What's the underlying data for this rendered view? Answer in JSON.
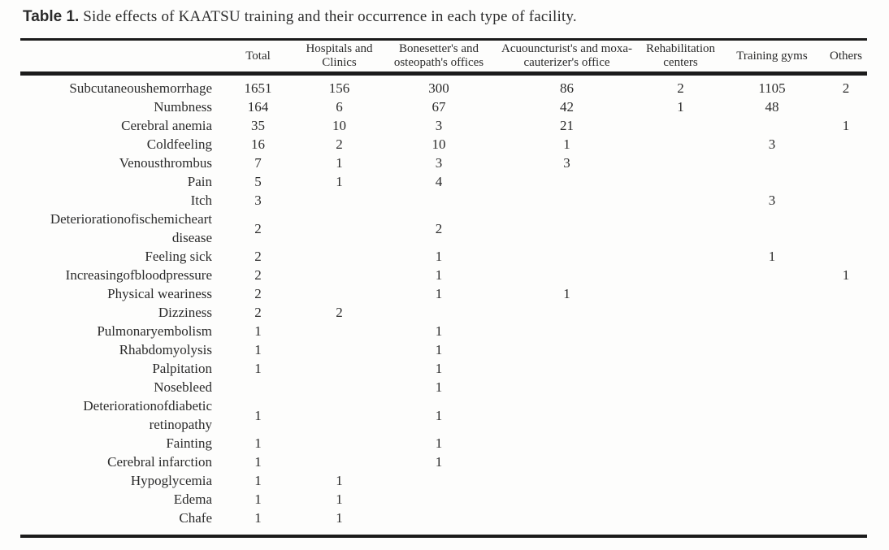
{
  "title": {
    "label": "Table 1.",
    "text": " Side effects of KAATSU training and their occurrence in each type of facility."
  },
  "colors": {
    "text": "#2b2b2b",
    "rule": "#1b1b1b",
    "background": "#fdfdfc"
  },
  "table": {
    "columns": [
      {
        "key": "label",
        "label": ""
      },
      {
        "key": "total",
        "label": "Total"
      },
      {
        "key": "hospitals",
        "label": "Hospitals and Clinics"
      },
      {
        "key": "bonesetter",
        "label": "Bonesetter's and osteopath's offices"
      },
      {
        "key": "acupuncturist",
        "label": "Acuouncturist's and moxa-cauterizer's office"
      },
      {
        "key": "rehabilitation",
        "label": "Rehabilitation centers"
      },
      {
        "key": "gyms",
        "label": "Training gyms"
      },
      {
        "key": "others",
        "label": "Others"
      }
    ],
    "rows": [
      [
        "Subcutaneoushemorrhage",
        "1651",
        "156",
        "300",
        "86",
        "2",
        "1105",
        "2"
      ],
      [
        "Numbness",
        "164",
        "6",
        "67",
        "42",
        "1",
        "48",
        ""
      ],
      [
        "Cerebral anemia",
        "35",
        "10",
        "3",
        "21",
        "",
        "",
        "1"
      ],
      [
        "Coldfeeling",
        "16",
        "2",
        "10",
        "1",
        "",
        "3",
        ""
      ],
      [
        "Venousthrombus",
        "7",
        "1",
        "3",
        "3",
        "",
        "",
        ""
      ],
      [
        "Pain",
        "5",
        "1",
        "4",
        "",
        "",
        "",
        ""
      ],
      [
        "Itch",
        "3",
        "",
        "",
        "",
        "",
        "3",
        ""
      ],
      [
        "Deteriorationofischemicheart disease",
        "2",
        "",
        "2",
        "",
        "",
        "",
        ""
      ],
      [
        "Feeling sick",
        "2",
        "",
        "1",
        "",
        "",
        "1",
        ""
      ],
      [
        "Increasingofbloodpressure",
        "2",
        "",
        "1",
        "",
        "",
        "",
        "1"
      ],
      [
        "Physical weariness",
        "2",
        "",
        "1",
        "1",
        "",
        "",
        ""
      ],
      [
        "Dizziness",
        "2",
        "2",
        "",
        "",
        "",
        "",
        ""
      ],
      [
        "Pulmonaryembolism",
        "1",
        "",
        "1",
        "",
        "",
        "",
        ""
      ],
      [
        "Rhabdomyolysis",
        "1",
        "",
        "1",
        "",
        "",
        "",
        ""
      ],
      [
        "Palpitation",
        "1",
        "",
        "1",
        "",
        "",
        "",
        ""
      ],
      [
        "Nosebleed",
        "",
        "",
        "1",
        "",
        "",
        "",
        ""
      ],
      [
        "Deteriorationofdiabetic retinopathy",
        "1",
        "",
        "1",
        "",
        "",
        "",
        ""
      ],
      [
        "Fainting",
        "1",
        "",
        "1",
        "",
        "",
        "",
        ""
      ],
      [
        "Cerebral infarction",
        "1",
        "",
        "1",
        "",
        "",
        "",
        ""
      ],
      [
        "Hypoglycemia",
        "1",
        "1",
        "",
        "",
        "",
        "",
        ""
      ],
      [
        "Edema",
        "1",
        "1",
        "",
        "",
        "",
        "",
        ""
      ],
      [
        "Chafe",
        "1",
        "1",
        "",
        "",
        "",
        "",
        ""
      ]
    ]
  }
}
